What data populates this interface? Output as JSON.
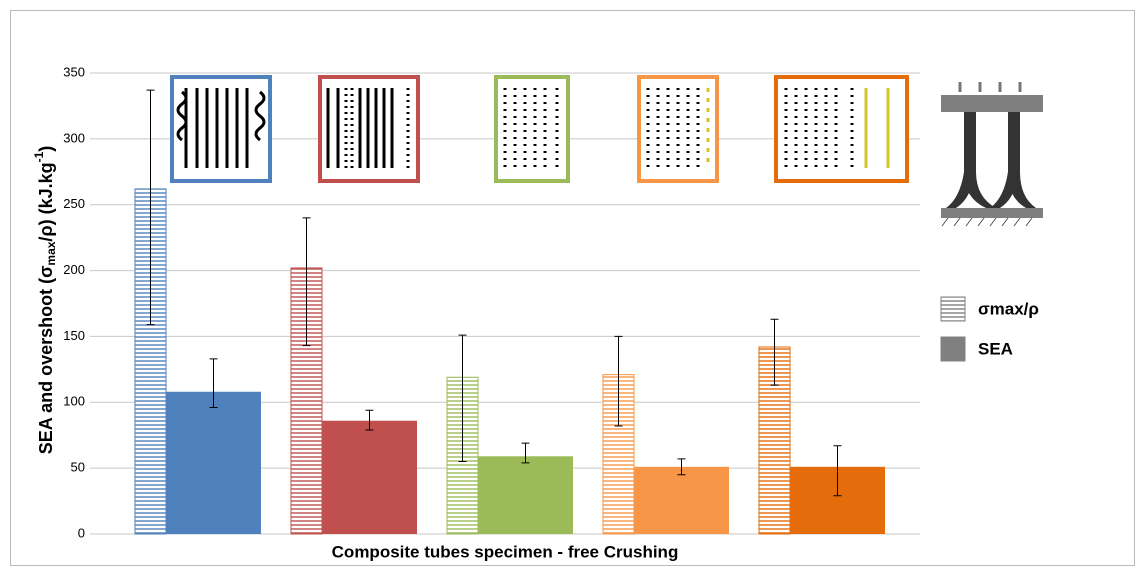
{
  "chart_data": {
    "type": "bar",
    "y_label": [
      "SEA and overshoot (σ",
      "max",
      "/ρ)  (kJ.kg",
      "-1",
      ")"
    ],
    "x_label": "Composite tubes specimen - free Crushing",
    "categories": [
      null,
      null,
      null,
      null,
      null
    ],
    "colors": [
      "#4f81bd",
      "#c0504d",
      "#9bbb59",
      "#f79646",
      "#e46c0a"
    ],
    "series": [
      {
        "name": "σmax/ρ",
        "style": "hatched",
        "color": "#808080",
        "values": [
          262,
          202,
          119,
          121,
          142
        ],
        "err_plus": [
          75,
          38,
          32,
          29,
          21
        ],
        "err_minus": [
          103,
          59,
          64,
          39,
          29
        ]
      },
      {
        "name": "SEA",
        "style": "solid",
        "color": "#808080",
        "values": [
          108,
          86,
          59,
          51,
          51
        ],
        "err_plus": [
          25,
          8,
          10,
          6,
          16
        ],
        "err_minus": [
          12,
          7,
          5,
          6,
          22
        ]
      }
    ],
    "ylim": [
      0,
      350
    ],
    "yticks": [
      0,
      50,
      100,
      150,
      200,
      250,
      300,
      350
    ],
    "grid": true
  }
}
